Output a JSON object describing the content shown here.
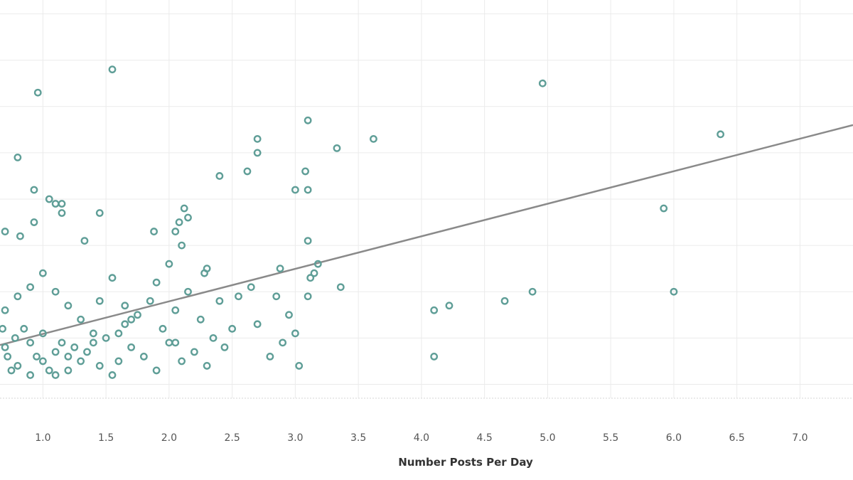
{
  "chart_data": {
    "type": "scatter",
    "title": "",
    "xlabel": "Number Posts Per Day",
    "ylabel": "",
    "xlim": [
      0.66,
      7.42
    ],
    "ylim": [
      -0.3,
      8.3
    ],
    "x_ticks": [
      "1.0",
      "1.5",
      "2.0",
      "2.5",
      "3.0",
      "3.5",
      "4.0",
      "4.5",
      "5.0",
      "5.5",
      "6.0",
      "6.5",
      "7.0"
    ],
    "grid": true,
    "point_color": "#5f9e97",
    "trendline_color": "#8a8a8a",
    "trendline": {
      "x": [
        0.66,
        7.42
      ],
      "y": [
        0.85,
        5.6
      ]
    },
    "series": [
      {
        "points": [
          [
            1.0,
            0.5
          ],
          [
            1.1,
            0.7
          ],
          [
            0.8,
            0.4
          ],
          [
            0.9,
            0.9
          ],
          [
            1.2,
            0.6
          ],
          [
            1.0,
            1.1
          ],
          [
            0.7,
            0.8
          ],
          [
            1.3,
            0.5
          ],
          [
            1.05,
            0.3
          ],
          [
            0.95,
            0.6
          ],
          [
            1.15,
            0.9
          ],
          [
            0.85,
            1.2
          ],
          [
            1.25,
            0.8
          ],
          [
            0.75,
            0.3
          ],
          [
            1.35,
            0.7
          ],
          [
            1.45,
            0.4
          ],
          [
            1.5,
            1.0
          ],
          [
            1.6,
            0.5
          ],
          [
            1.7,
            0.8
          ],
          [
            1.8,
            0.6
          ],
          [
            1.9,
            0.3
          ],
          [
            2.0,
            0.9
          ],
          [
            2.1,
            0.5
          ],
          [
            2.2,
            0.7
          ],
          [
            2.3,
            0.4
          ],
          [
            1.55,
            0.2
          ],
          [
            1.65,
            1.3
          ],
          [
            1.75,
            1.5
          ],
          [
            1.85,
            1.8
          ],
          [
            1.95,
            1.2
          ],
          [
            2.05,
            1.6
          ],
          [
            2.15,
            2.0
          ],
          [
            2.25,
            1.4
          ],
          [
            0.7,
            1.6
          ],
          [
            0.8,
            1.9
          ],
          [
            0.9,
            2.1
          ],
          [
            1.0,
            2.4
          ],
          [
            1.1,
            2.0
          ],
          [
            1.2,
            1.7
          ],
          [
            1.3,
            1.4
          ],
          [
            1.4,
            1.1
          ],
          [
            1.45,
            1.8
          ],
          [
            1.55,
            2.3
          ],
          [
            1.65,
            1.7
          ],
          [
            1.9,
            2.2
          ],
          [
            2.0,
            2.6
          ],
          [
            2.1,
            3.0
          ],
          [
            2.08,
            3.5
          ],
          [
            2.05,
            3.3
          ],
          [
            2.15,
            3.6
          ],
          [
            2.12,
            3.8
          ],
          [
            1.88,
            3.3
          ],
          [
            1.45,
            3.7
          ],
          [
            1.33,
            3.1
          ],
          [
            1.05,
            4.0
          ],
          [
            1.1,
            3.9
          ],
          [
            1.15,
            3.7
          ],
          [
            1.15,
            3.9
          ],
          [
            0.93,
            4.2
          ],
          [
            0.93,
            3.5
          ],
          [
            0.82,
            3.2
          ],
          [
            0.7,
            3.3
          ],
          [
            0.8,
            4.9
          ],
          [
            0.96,
            6.3
          ],
          [
            1.55,
            6.8
          ],
          [
            2.4,
            4.5
          ],
          [
            2.62,
            4.6
          ],
          [
            2.7,
            5.0
          ],
          [
            2.7,
            5.3
          ],
          [
            3.0,
            4.2
          ],
          [
            3.08,
            4.6
          ],
          [
            3.1,
            4.2
          ],
          [
            3.1,
            5.7
          ],
          [
            3.33,
            5.1
          ],
          [
            3.62,
            5.3
          ],
          [
            3.1,
            3.1
          ],
          [
            3.18,
            2.6
          ],
          [
            3.15,
            2.4
          ],
          [
            3.12,
            2.3
          ],
          [
            2.88,
            2.5
          ],
          [
            2.65,
            2.1
          ],
          [
            2.4,
            1.8
          ],
          [
            2.3,
            2.5
          ],
          [
            2.28,
            2.4
          ],
          [
            2.55,
            1.9
          ],
          [
            2.95,
            1.5
          ],
          [
            3.1,
            1.9
          ],
          [
            3.36,
            2.1
          ],
          [
            2.9,
            0.9
          ],
          [
            3.0,
            1.1
          ],
          [
            2.8,
            0.6
          ],
          [
            2.44,
            0.8
          ],
          [
            2.35,
            1.0
          ],
          [
            2.05,
            0.9
          ],
          [
            3.03,
            0.4
          ],
          [
            2.7,
            1.3
          ],
          [
            2.5,
            1.2
          ],
          [
            2.85,
            1.9
          ],
          [
            4.1,
            1.6
          ],
          [
            4.22,
            1.7
          ],
          [
            4.1,
            0.6
          ],
          [
            4.66,
            1.8
          ],
          [
            4.88,
            2.0
          ],
          [
            4.96,
            6.5
          ],
          [
            5.92,
            3.8
          ],
          [
            6.0,
            2.0
          ],
          [
            6.37,
            5.4
          ],
          [
            1.6,
            1.1
          ],
          [
            1.7,
            1.4
          ],
          [
            1.4,
            0.9
          ],
          [
            1.2,
            0.3
          ],
          [
            1.1,
            0.2
          ],
          [
            0.9,
            0.2
          ],
          [
            0.78,
            1.0
          ],
          [
            0.72,
            0.6
          ],
          [
            0.68,
            1.2
          ]
        ]
      }
    ]
  }
}
